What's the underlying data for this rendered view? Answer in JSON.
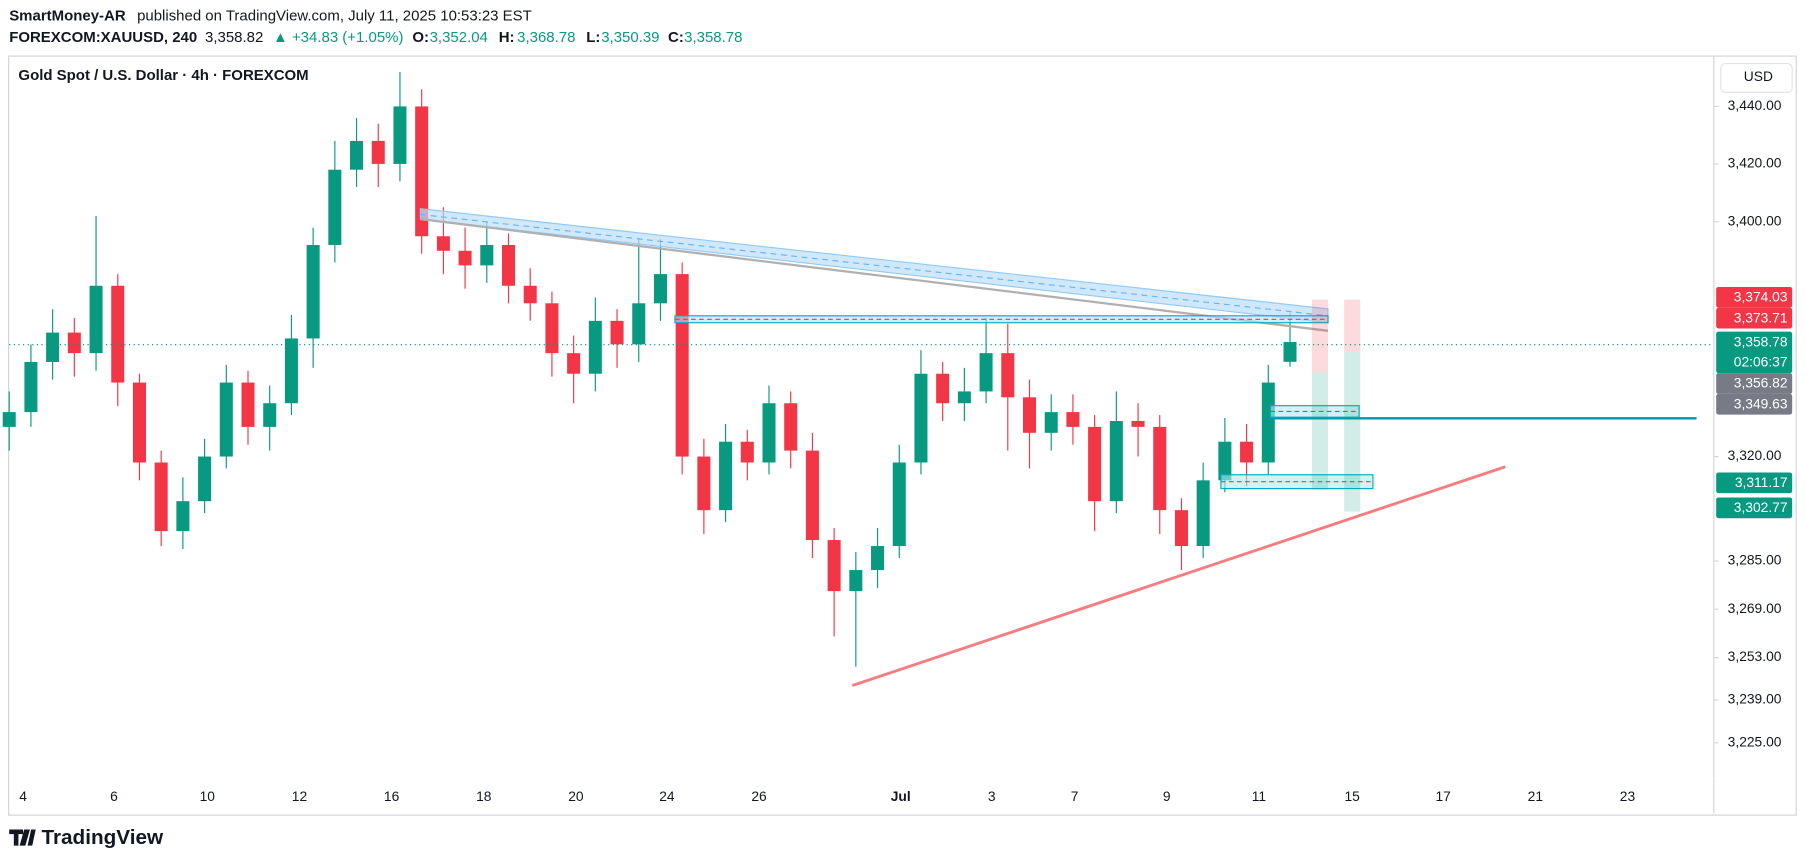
{
  "header": {
    "publisher": "SmartMoney-AR",
    "published": "published on TradingView.com, July 11, 2025 10:53:23 EST",
    "symbol": "FOREXCOM:XAUUSD, 240",
    "last": "3,358.82",
    "change": "▲ +34.83 (+1.05%)",
    "o_label": "O:",
    "o": "3,352.04",
    "h_label": "H:",
    "h": "3,368.78",
    "l_label": "L:",
    "l": "3,350.39",
    "c_label": "C:",
    "c": "3,358.78"
  },
  "chart_data": {
    "type": "candlestick",
    "title": "Gold Spot / U.S. Dollar · 4h · FOREXCOM",
    "currency": "USD",
    "log_scale": true,
    "ylim": [
      3202,
      3457
    ],
    "yticks": [
      {
        "value": 3440,
        "label": "3,440.00"
      },
      {
        "value": 3420,
        "label": "3,420.00"
      },
      {
        "value": 3400,
        "label": "3,400.00"
      },
      {
        "value": 3320,
        "label": "3,320.00"
      },
      {
        "value": 3285,
        "label": "3,285.00"
      },
      {
        "value": 3269,
        "label": "3,269.00"
      },
      {
        "value": 3253,
        "label": "3,253.00"
      },
      {
        "value": 3239,
        "label": "3,239.00"
      },
      {
        "value": 3225,
        "label": "3,225.00"
      }
    ],
    "x_labels": [
      "4",
      "6",
      "10",
      "12",
      "16",
      "18",
      "20",
      "24",
      "26",
      "Jul",
      "3",
      "7",
      "9",
      "11",
      "15",
      "17",
      "21",
      "23"
    ],
    "open": [
      3330,
      3335,
      3352,
      3362,
      3355,
      3378,
      3345,
      3318,
      3295,
      3305,
      3320,
      3345,
      3330,
      3338,
      3360,
      3392,
      3418,
      3428,
      3420,
      3440,
      3395,
      3390,
      3385,
      3392,
      3378,
      3372,
      3355,
      3348,
      3366,
      3358,
      3372,
      3382,
      3320,
      3302,
      3325,
      3318,
      3338,
      3322,
      3292,
      3275,
      3282,
      3290,
      3318,
      3348,
      3338,
      3342,
      3355,
      3340,
      3328,
      3335,
      3330,
      3305,
      3332,
      3330,
      3302,
      3290,
      3312,
      3325,
      3318,
      3352.04
    ],
    "high": [
      3342,
      3358,
      3370,
      3367,
      3402,
      3382,
      3348,
      3322,
      3313,
      3326,
      3351,
      3349,
      3344,
      3368,
      3398,
      3428,
      3436,
      3434,
      3452,
      3446,
      3405,
      3398,
      3400,
      3396,
      3384,
      3376,
      3361,
      3374,
      3370,
      3394,
      3394,
      3386,
      3326,
      3331,
      3329,
      3344,
      3342,
      3328,
      3296,
      3288,
      3296,
      3324,
      3356,
      3352,
      3350,
      3367,
      3365,
      3346,
      3341,
      3341,
      3334,
      3342,
      3338,
      3334,
      3306,
      3318,
      3333,
      3331,
      3351,
      3368.78
    ],
    "low": [
      3322,
      3330,
      3346,
      3347,
      3349,
      3337,
      3312,
      3290,
      3289,
      3301,
      3316,
      3324,
      3322,
      3334,
      3350,
      3386,
      3412,
      3412,
      3414,
      3389,
      3382,
      3377,
      3379,
      3372,
      3366,
      3347,
      3338,
      3342,
      3350,
      3352,
      3366,
      3314,
      3294,
      3298,
      3312,
      3314,
      3316,
      3286,
      3260,
      3250,
      3276,
      3286,
      3314,
      3332,
      3332,
      3338,
      3322,
      3316,
      3322,
      3324,
      3295,
      3301,
      3320,
      3294,
      3282,
      3286,
      3308,
      3310,
      3314,
      3350.39
    ],
    "close": [
      3335,
      3352,
      3362,
      3355,
      3378,
      3345,
      3318,
      3295,
      3305,
      3320,
      3345,
      3330,
      3338,
      3360,
      3392,
      3418,
      3428,
      3420,
      3440,
      3395,
      3390,
      3385,
      3392,
      3378,
      3372,
      3355,
      3348,
      3366,
      3358,
      3372,
      3382,
      3320,
      3302,
      3325,
      3318,
      3338,
      3322,
      3292,
      3275,
      3282,
      3290,
      3318,
      3348,
      3338,
      3342,
      3355,
      3340,
      3328,
      3335,
      3330,
      3305,
      3332,
      3330,
      3302,
      3290,
      3312,
      3325,
      3318,
      3345,
      3358.78
    ],
    "up_color": "#089981",
    "down_color": "#f23645",
    "price_labels": [
      {
        "value": 3374.03,
        "label": "3,374.03",
        "color": "#f23645"
      },
      {
        "value": 3373.71,
        "label": "3,373.71",
        "color": "#f23645"
      },
      {
        "value": 3358.78,
        "label": "3,358.78",
        "color": "#089981"
      },
      {
        "value": 3356.82,
        "label": "3,356.82",
        "color": "#787b86"
      },
      {
        "value": 3349.63,
        "label": "3,349.63",
        "color": "#787b86"
      },
      {
        "value": 3311.17,
        "label": "3,311.17",
        "color": "#089981"
      },
      {
        "value": 3302.77,
        "label": "3,302.77",
        "color": "#089981"
      }
    ],
    "countdown": "02:06:37"
  },
  "footer": {
    "brand": "TradingView"
  }
}
